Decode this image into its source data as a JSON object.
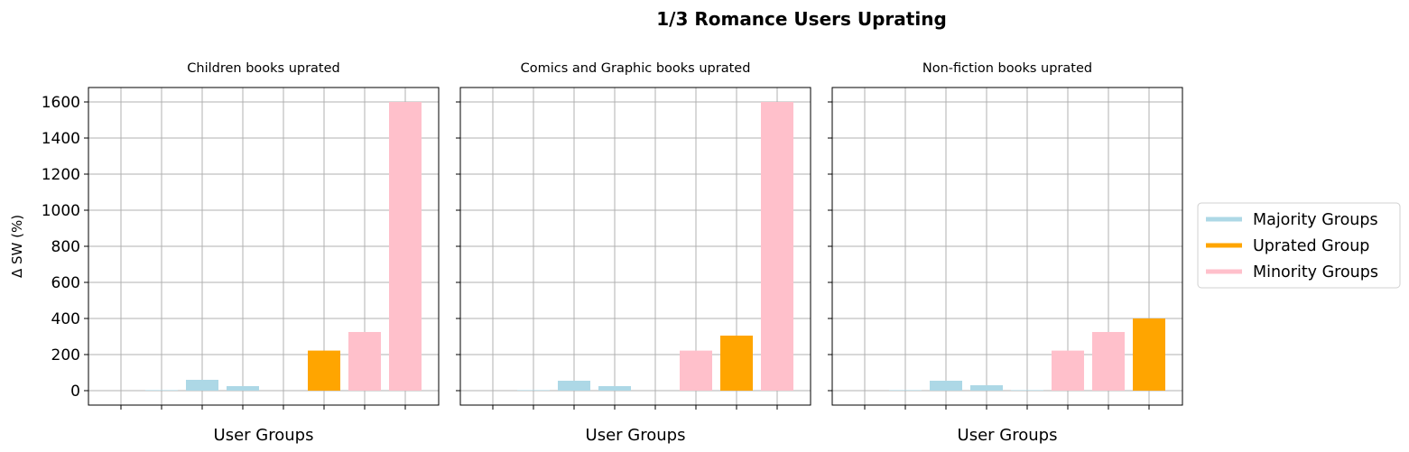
{
  "chart_data": {
    "type": "bar",
    "title": "1/3 Romance Users Uprating",
    "ylabel": "Δ SW (%)",
    "xlabel": "User Groups",
    "ylim": [
      -80,
      1680
    ],
    "yticks": [
      0,
      200,
      400,
      600,
      800,
      1000,
      1200,
      1400,
      1600
    ],
    "grid": true,
    "legend_position": "right",
    "colors": {
      "majority": "#add8e6",
      "uprated": "#ffa500",
      "minority": "#ffc0cb"
    },
    "legend": [
      {
        "key": "majority",
        "label": "Majority Groups"
      },
      {
        "key": "uprated",
        "label": "Uprated Group"
      },
      {
        "key": "minority",
        "label": "Minority Groups"
      }
    ],
    "panels": [
      {
        "title": "Children books uprated",
        "values": [
          0,
          3,
          60,
          25,
          0,
          222,
          325,
          1600
        ],
        "groups": [
          "majority",
          "majority",
          "majority",
          "majority",
          "majority",
          "uprated",
          "minority",
          "minority"
        ]
      },
      {
        "title": "Comics and Graphic books uprated",
        "values": [
          0,
          3,
          55,
          25,
          0,
          222,
          305,
          1600
        ],
        "groups": [
          "majority",
          "majority",
          "majority",
          "majority",
          "minority",
          "minority",
          "uprated",
          "minority"
        ]
      },
      {
        "title": "Non-fiction books uprated",
        "values": [
          0,
          3,
          55,
          30,
          3,
          222,
          325,
          400
        ],
        "groups": [
          "majority",
          "majority",
          "majority",
          "majority",
          "majority",
          "minority",
          "minority",
          "uprated"
        ]
      }
    ]
  }
}
